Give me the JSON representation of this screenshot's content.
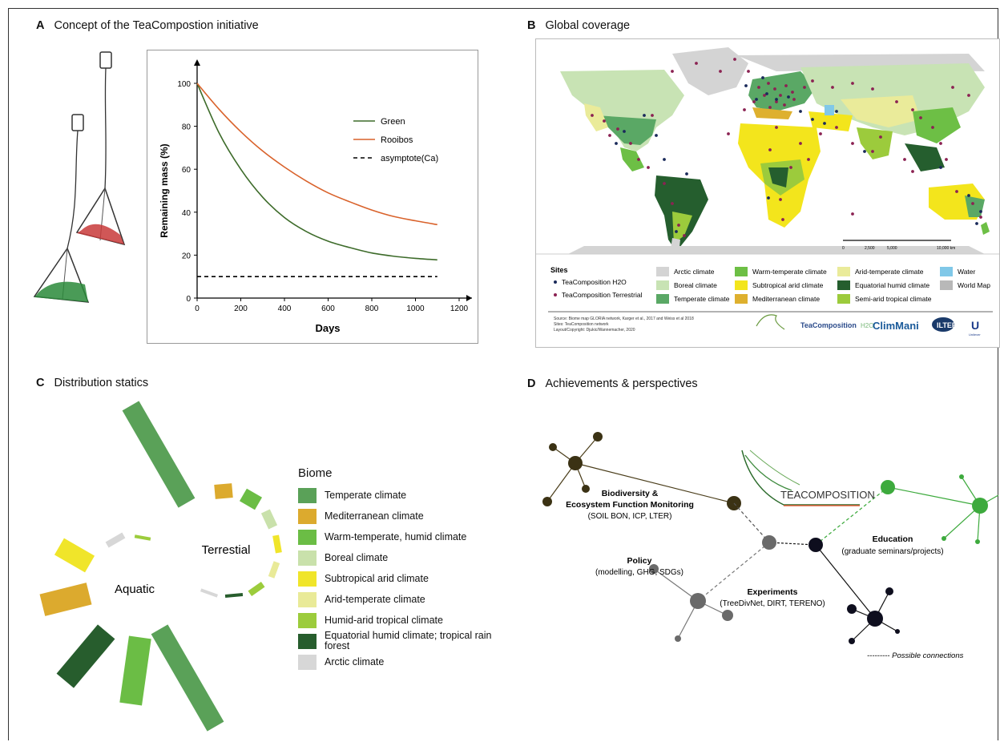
{
  "panels": {
    "a": {
      "letter": "A",
      "title": "Concept of the TeaCompostion initiative"
    },
    "b": {
      "letter": "B",
      "title": "Global coverage"
    },
    "c": {
      "letter": "C",
      "title": "Distribution statics"
    },
    "d": {
      "letter": "D",
      "title": "Achievements & perspectives"
    }
  },
  "chart_data": {
    "type": "line",
    "xlabel": "Days",
    "ylabel": "Remaining mass (%)",
    "xlim": [
      0,
      1200
    ],
    "ylim": [
      0,
      100
    ],
    "xticks": [
      0,
      200,
      400,
      600,
      800,
      1000,
      1200
    ],
    "yticks": [
      0,
      20,
      40,
      60,
      80,
      100
    ],
    "x": [
      0,
      100,
      200,
      300,
      400,
      500,
      600,
      700,
      800,
      900,
      1000,
      1100
    ],
    "series": [
      {
        "name": "Green",
        "color": "#3d6b2a",
        "values": [
          100,
          77,
          60,
          47,
          37.5,
          31,
          26.5,
          23.5,
          21,
          19.5,
          18.5,
          17.8
        ]
      },
      {
        "name": "Rooibos",
        "color": "#d9622b",
        "values": [
          100,
          88,
          77.5,
          68.5,
          61,
          54.5,
          49,
          44.8,
          41,
          38,
          36,
          34.2
        ]
      },
      {
        "name": "asymptote(Ca)",
        "color": "#000000",
        "dashed": true,
        "values": [
          10,
          10,
          10,
          10,
          10,
          10,
          10,
          10,
          10,
          10,
          10,
          10
        ]
      }
    ],
    "grid": false,
    "legend": "top-right"
  },
  "map": {
    "sites_title": "Sites",
    "sites": [
      {
        "label": "TeaComposition H2O",
        "color": "#1a2a5a"
      },
      {
        "label": "TeaComposition Terrestrial",
        "color": "#8b2252"
      }
    ],
    "legend": [
      {
        "label": "Arctic climate",
        "color": "#d4d4d4"
      },
      {
        "label": "Boreal climate",
        "color": "#c8e3b4"
      },
      {
        "label": "Temperate climate",
        "color": "#5aa865"
      },
      {
        "label": "Warm-temperate climate",
        "color": "#6dbf45"
      },
      {
        "label": "Subtropical arid climate",
        "color": "#f3e51c"
      },
      {
        "label": "Mediterranean climate",
        "color": "#deb02e"
      },
      {
        "label": "Arid-temperate climate",
        "color": "#eaeb9a"
      },
      {
        "label": "Equatorial humid climate",
        "color": "#255e2e"
      },
      {
        "label": "Semi-arid tropical climate",
        "color": "#9ccb3c"
      },
      {
        "label": "Water",
        "color": "#80c8e8"
      },
      {
        "label": "World Map",
        "color": "#b8b8b8"
      }
    ],
    "scale_ticks": [
      "0",
      "2,500",
      "5,000",
      "10,000 km"
    ],
    "source_lines": [
      "Source: Biome map GLORIA network, Karger et al., 2017 and Weiss et al 2018",
      "Sites: TeaComposition network",
      "Layout/Copyright: Djukic/Wannemacher, 2020"
    ],
    "logos": [
      "TeaComposition",
      "H2O",
      "ClimMani",
      "ILTER",
      "Unilever"
    ]
  },
  "distribution": {
    "aquatic_label": "Aquatic",
    "terrestrial_label": "Terrestial",
    "legend_title": "Biome",
    "legend": [
      {
        "label": "Temperate climate",
        "color": "#5aa158"
      },
      {
        "label": "Mediterranean climate",
        "color": "#dcaa2e"
      },
      {
        "label": "Warm-temperate, humid climate",
        "color": "#6bbd45"
      },
      {
        "label": "Boreal climate",
        "color": "#c9e1ab"
      },
      {
        "label": "Subtropical arid climate",
        "color": "#f0e52a"
      },
      {
        "label": "Arid-temperate climate",
        "color": "#e9ea98"
      },
      {
        "label": "Humid-arid tropical climate",
        "color": "#9ccc3c"
      },
      {
        "label": "Equatorial humid climate; tropical rain forest",
        "color": "#275d2d"
      },
      {
        "label": "Arctic climate",
        "color": "#d7d7d7"
      }
    ]
  },
  "network": {
    "logo_text": "TEACOMPOSITION",
    "nodes": [
      {
        "title": "Biodiversity &",
        "title2": "Ecosystem Function Monitoring",
        "sub": "(SOIL BON, ICP, LTER)"
      },
      {
        "title": "Policy",
        "sub": "(modelling, GHG, SDGs)"
      },
      {
        "title": "Experiments",
        "sub": "(TreeDivNet, DIRT, TERENO)"
      },
      {
        "title": "Education",
        "sub": "(graduate seminars/projects)"
      }
    ],
    "possible_connections": "--------- Possible connections"
  }
}
